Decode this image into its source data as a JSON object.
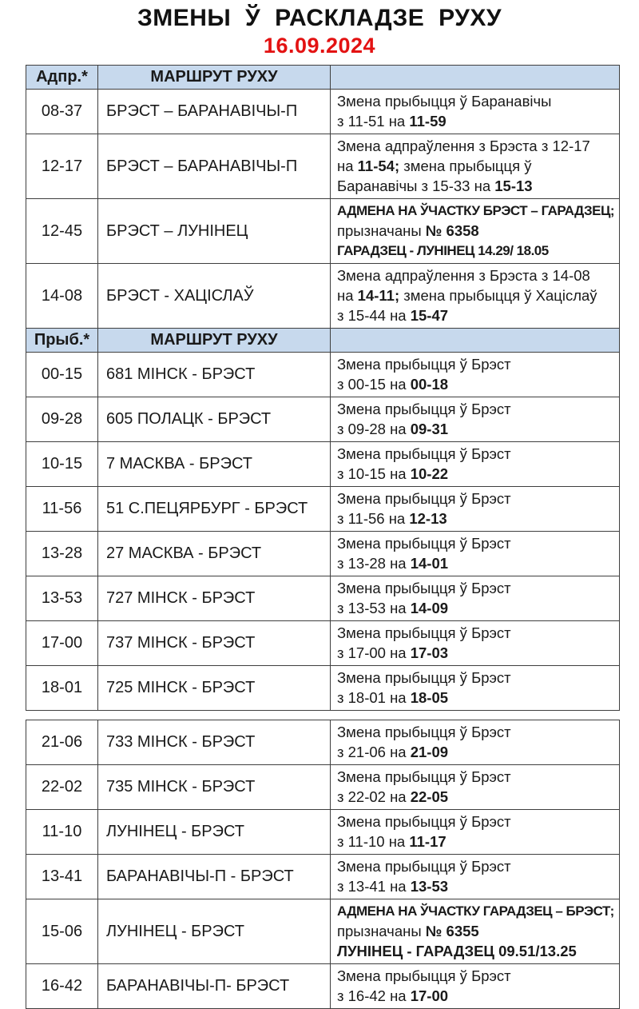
{
  "page": {
    "title": "ЗМЕНЫ Ў РАСКЛАДЗЕ РУХУ",
    "date": "16.09.2024",
    "accent_red": "#e31212",
    "header_bg": "#c7d9ed"
  },
  "tables": [
    {
      "blocks": [
        {
          "type": "header",
          "cells": [
            "Адпр.*",
            "МАРШРУТ  РУХУ",
            ""
          ]
        },
        {
          "type": "row",
          "time": "08-37",
          "route": "БРЭСТ – БАРАНАВІЧЫ-П",
          "change": [
            "Змена прыбыцця ў Баранавічы",
            "з 11-51 на **11-59**"
          ]
        },
        {
          "type": "row",
          "time": "12-17",
          "route": "БРЭСТ – БАРАНАВІЧЫ-П",
          "change": [
            "Змена адпраўлення з Брэста з 12-17",
            "на **11-54;** змена прыбыцця ў",
            "Баранавічы з 15-33 на **15-13**"
          ]
        },
        {
          "type": "row",
          "time": "12-45",
          "route": "БРЭСТ – ЛУНІНЕЦ",
          "change": [
            "**АДМЕНА НА ЎЧАСТКУ БРЭСТ – ГАРАДЗЕЦ;**",
            "прызначаны **№ 6358**",
            "**ГАРАДЗЕЦ - ЛУНІНЕЦ 14.29/ 18.05**"
          ]
        },
        {
          "type": "row",
          "time": "14-08",
          "route": "БРЭСТ - ХАЦІСЛАЎ",
          "change": [
            "Змена адпраўлення з Брэста з 14-08",
            "на **14-11;** змена прыбыцця ў Хаціслаў",
            "з 15-44 на **15-47**"
          ]
        },
        {
          "type": "header",
          "cells": [
            "Прыб.*",
            "МАРШРУТ  РУХУ",
            ""
          ]
        },
        {
          "type": "row",
          "time": "00-15",
          "route": "681 МІНСК - БРЭСТ",
          "change": [
            "Змена прыбыцця ў Брэст",
            "з 00-15 на **00-18**"
          ]
        },
        {
          "type": "row",
          "time": "09-28",
          "route": "605 ПОЛАЦК - БРЭСТ",
          "change": [
            "Змена прыбыцця ў Брэст",
            "з 09-28 на **09-31**"
          ]
        },
        {
          "type": "row",
          "time": "10-15",
          "route": "7 МАСКВА - БРЭСТ",
          "change": [
            "Змена прыбыцця ў Брэст",
            "з 10-15 на **10-22**"
          ]
        },
        {
          "type": "row",
          "time": "11-56",
          "route": "51 С.ПЕЦЯРБУРГ - БРЭСТ",
          "change": [
            "Змена прыбыцця ў Брэст",
            "з 11-56 на **12-13**"
          ]
        },
        {
          "type": "row",
          "time": "13-28",
          "route": "27 МАСКВА - БРЭСТ",
          "change": [
            "Змена прыбыцця ў Брэст",
            "з 13-28 на **14-01**"
          ]
        },
        {
          "type": "row",
          "time": "13-53",
          "route": "727 МІНСК - БРЭСТ",
          "change": [
            "Змена прыбыцця ў Брэст",
            "з 13-53 на **14-09**"
          ]
        },
        {
          "type": "row",
          "time": "17-00",
          "route": "737 МІНСК - БРЭСТ",
          "change": [
            "Змена прыбыцця ў Брэст",
            "з 17-00 на **17-03**"
          ]
        },
        {
          "type": "row",
          "time": "18-01",
          "route": "725 МІНСК - БРЭСТ",
          "change": [
            "Змена прыбыцця ў Брэст",
            "з 18-01 на **18-05**"
          ]
        }
      ]
    },
    {
      "blocks": [
        {
          "type": "row",
          "time": "21-06",
          "route": "733 МІНСК - БРЭСТ",
          "change": [
            "Змена прыбыцця ў Брэст",
            "з 21-06 на **21-09**"
          ]
        },
        {
          "type": "row",
          "time": "22-02",
          "route": "735 МІНСК - БРЭСТ",
          "change": [
            "Змена прыбыцця ў Брэст",
            "з 22-02 на **22-05**"
          ]
        },
        {
          "type": "row",
          "time": "11-10",
          "route": "ЛУНІНЕЦ -  БРЭСТ",
          "change": [
            "Змена прыбыцця ў Брэст",
            "з 11-10 на **11-17**"
          ]
        },
        {
          "type": "row",
          "time": "13-41",
          "route": "БАРАНАВІЧЫ-П - БРЭСТ",
          "change": [
            "Змена прыбыцця ў Брэст",
            "з 13-41 на **13-53**"
          ]
        },
        {
          "type": "row",
          "time": "15-06",
          "route": "ЛУНІНЕЦ -  БРЭСТ",
          "change": [
            "**АДМЕНА НА ЎЧАСТКУ ГАРАДЗЕЦ  – БРЭСТ;**",
            "прызначаны **№ 6355**",
            "**ЛУНІНЕЦ - ГАРАДЗЕЦ 09.51/13.25**"
          ]
        },
        {
          "type": "row",
          "time": "16-42",
          "route": "БАРАНАВІЧЫ-П- БРЭСТ",
          "change": [
            "Змена прыбыцця ў Брэст",
            "з 16-42 на **17-00**"
          ]
        }
      ]
    }
  ]
}
